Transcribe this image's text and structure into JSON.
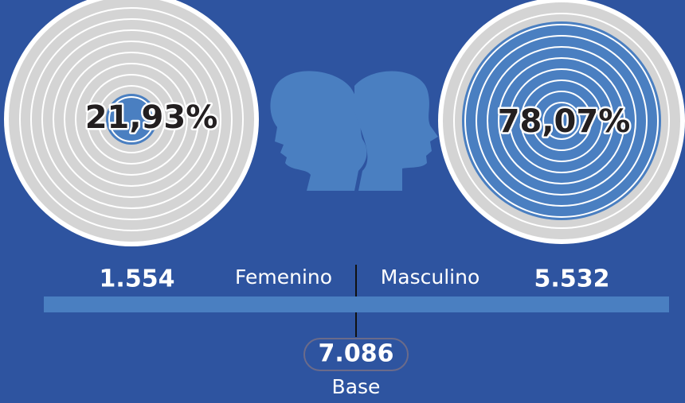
{
  "left": {
    "percent": "21,93%",
    "count": "1.554",
    "label": "Femenino"
  },
  "right": {
    "percent": "78,07%",
    "count": "5.532",
    "label": "Masculino"
  },
  "total": {
    "count": "7.086",
    "label": "Base"
  }
}
